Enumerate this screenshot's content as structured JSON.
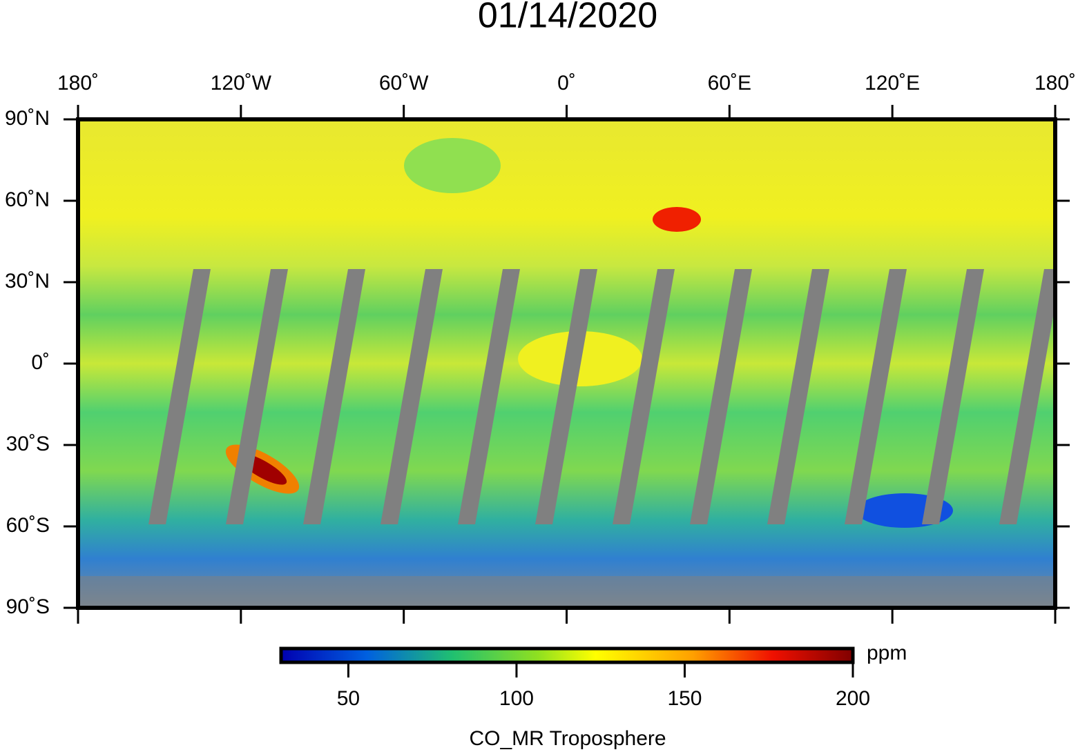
{
  "title": "01/14/2020",
  "map": {
    "lon_ticks": [
      {
        "value": -180,
        "label": "180˚"
      },
      {
        "value": -120,
        "label": "120˚W"
      },
      {
        "value": -60,
        "label": "60˚W"
      },
      {
        "value": 0,
        "label": "0˚"
      },
      {
        "value": 60,
        "label": "60˚E"
      },
      {
        "value": 120,
        "label": "120˚E"
      },
      {
        "value": 180,
        "label": "180˚"
      }
    ],
    "lat_ticks": [
      {
        "value": 90,
        "label": "90˚N"
      },
      {
        "value": 60,
        "label": "60˚N"
      },
      {
        "value": 30,
        "label": "30˚N"
      },
      {
        "value": 0,
        "label": "0˚"
      },
      {
        "value": -30,
        "label": "30˚S"
      },
      {
        "value": -60,
        "label": "60˚S"
      },
      {
        "value": -90,
        "label": "90˚S"
      }
    ],
    "lonlim": [
      -180,
      180
    ],
    "latlim": [
      -90,
      90
    ]
  },
  "colorbar": {
    "range": [
      30,
      200
    ],
    "ticks": [
      50,
      100,
      150,
      200
    ],
    "unit": "ppm",
    "label": "CO_MR Troposphere"
  }
}
